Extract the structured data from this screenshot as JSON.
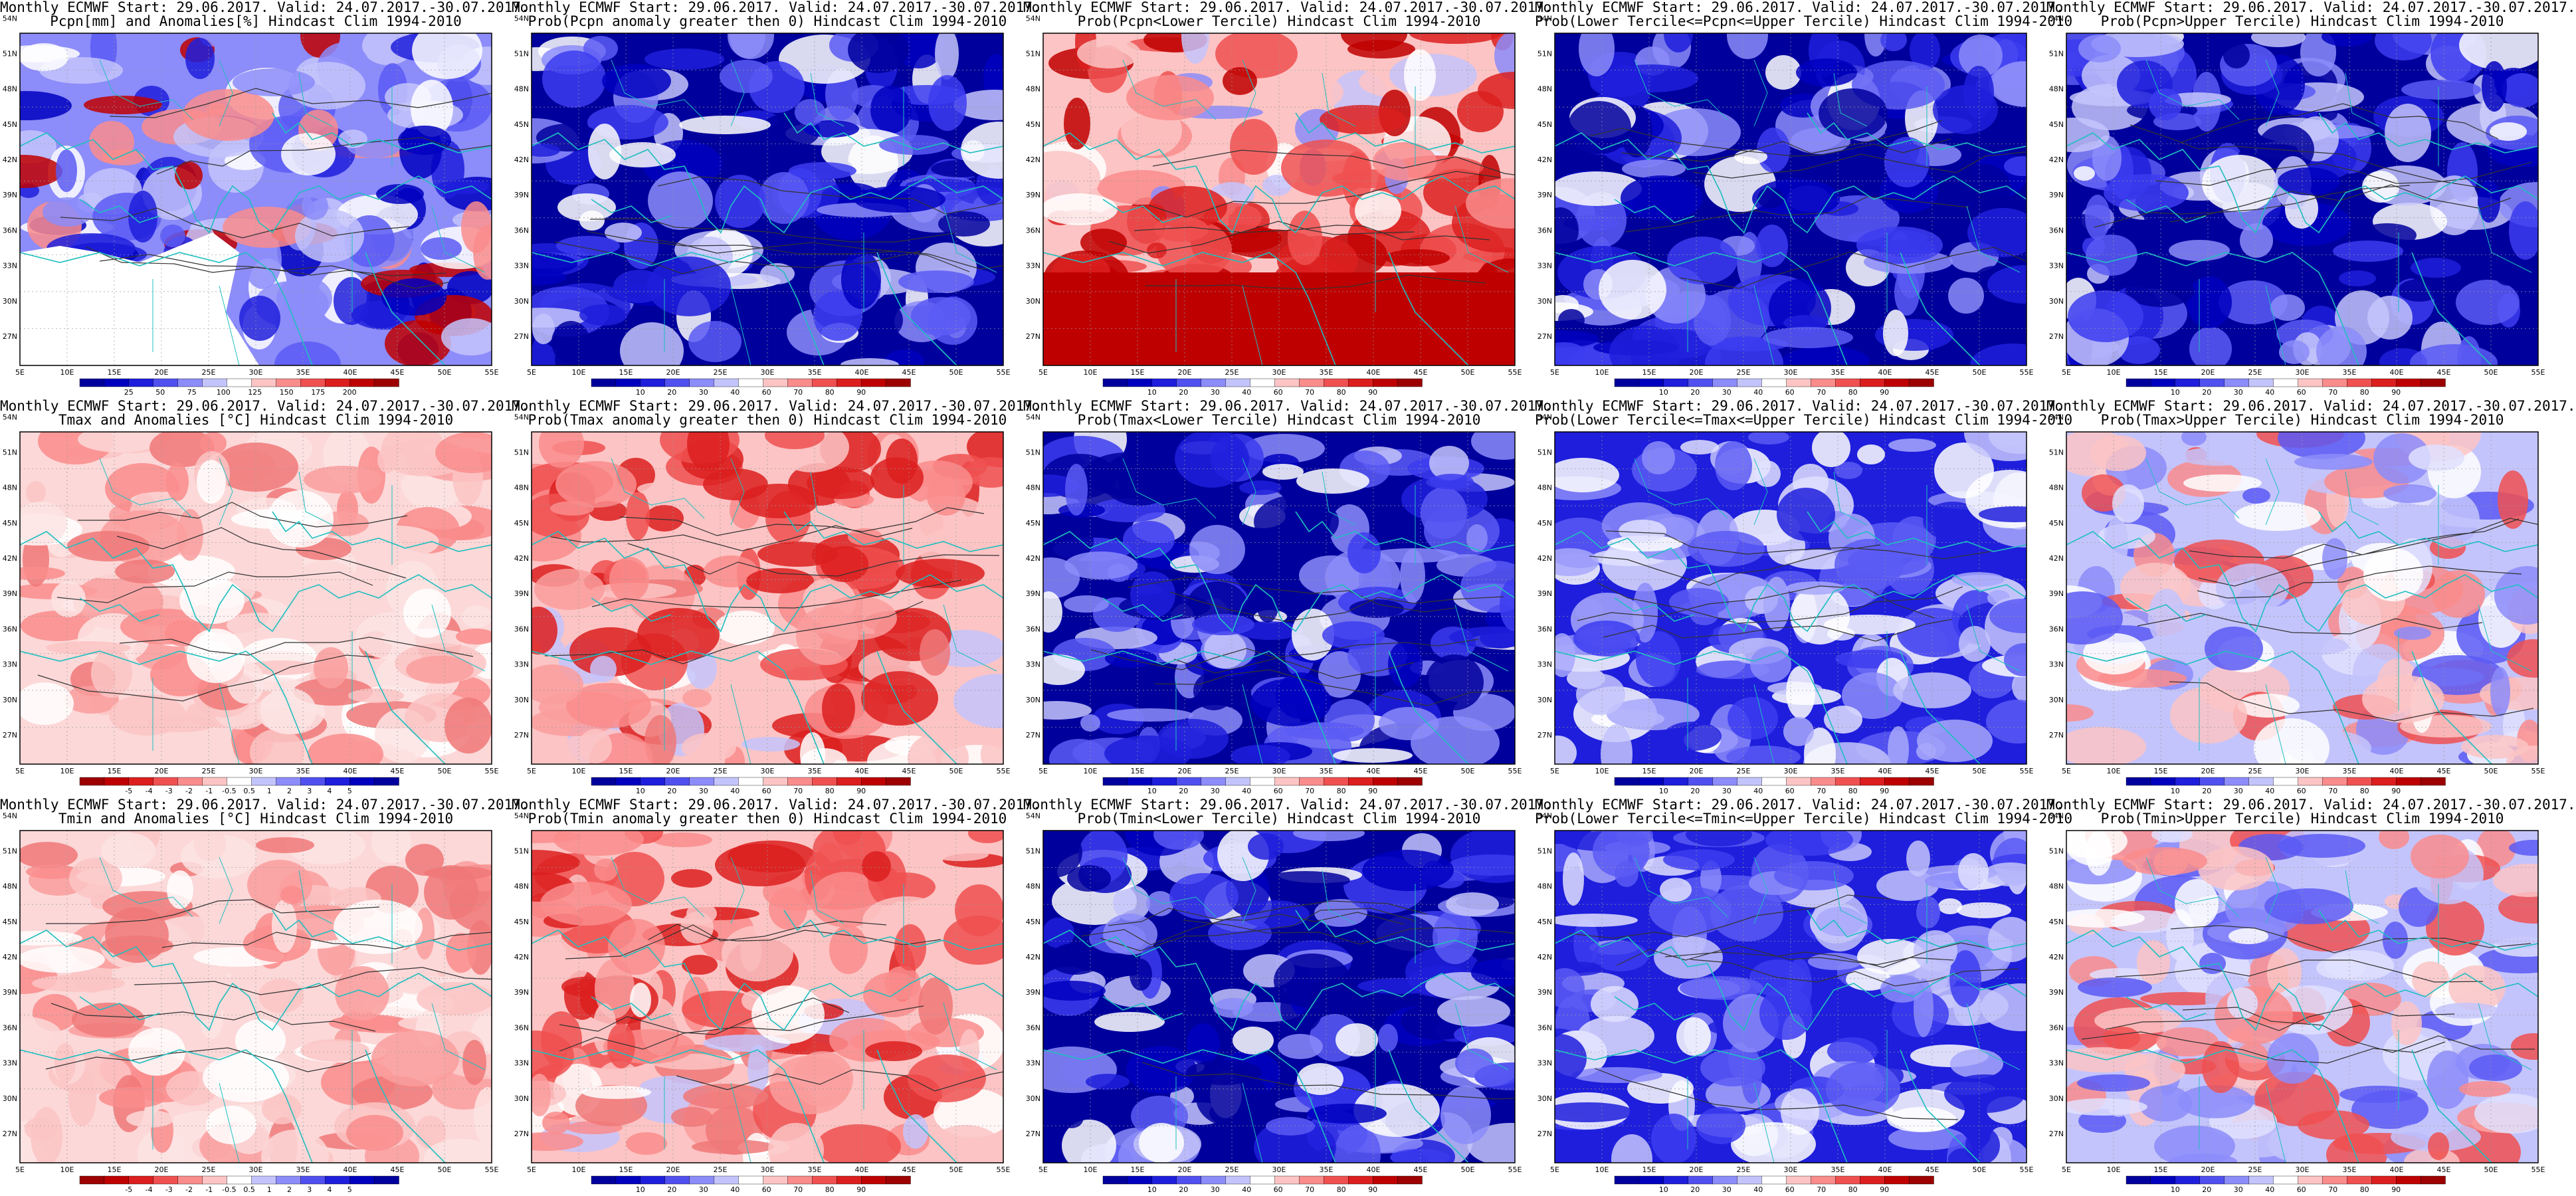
{
  "lon_labels": [
    "5E",
    "10E",
    "15E",
    "20E",
    "25E",
    "30E",
    "35E",
    "40E",
    "45E",
    "50E",
    "55E"
  ],
  "lat_labels": [
    "27N",
    "30N",
    "33N",
    "36N",
    "39N",
    "42N",
    "45N",
    "48N",
    "51N",
    "54N"
  ],
  "colors": {
    "coast": "#1fbfbf",
    "contour": "#333333",
    "scale_rain": [
      "#9c0000",
      "#bf0000",
      "#dc1e1e",
      "#f05050",
      "#fa8c8c",
      "#fcc4c4",
      "#ffffff",
      "#c4c4fc",
      "#8c8cfa",
      "#5050f0",
      "#1e1edc",
      "#0000bf",
      "#00009c"
    ]
  },
  "panels": [
    {
      "line1": "Monthly ECMWF Start: 29.06.2017. Valid: 24.07.2017.-30.07.2017.",
      "line2": "Pcpn[mm] and Anomalies[%] Hindcast Clim 1994-2010",
      "ticks": [
        "25",
        "50",
        "75",
        "100",
        "125",
        "150",
        "175",
        "200"
      ],
      "style": "pcpn_anom",
      "seed": 11
    },
    {
      "line1": "Monthly ECMWF Start: 29.06.2017. Valid: 24.07.2017.-30.07.2017.",
      "line2": "Prob(Pcpn anomaly greater then 0) Hindcast Clim 1994-2010",
      "ticks": [
        "10",
        "20",
        "30",
        "40",
        "60",
        "70",
        "80",
        "90"
      ],
      "style": "blue_heavy",
      "seed": 12
    },
    {
      "line1": "Monthly ECMWF Start: 29.06.2017. Valid: 24.07.2017.-30.07.2017.",
      "line2": "Prob(Pcpn<Lower Tercile) Hindcast Clim 1994-2010",
      "ticks": [
        "10",
        "20",
        "30",
        "40",
        "60",
        "70",
        "80",
        "90"
      ],
      "style": "red_south",
      "seed": 13
    },
    {
      "line1": "Monthly ECMWF Start: 29.06.2017. Valid: 24.07.2017.-30.07.2017.",
      "line2": "Prob(Lower Tercile<=Pcpn<=Upper Tercile) Hindcast Clim 1994-2010",
      "ticks": [
        "10",
        "20",
        "30",
        "40",
        "60",
        "70",
        "80",
        "90"
      ],
      "style": "blue_deep",
      "seed": 14
    },
    {
      "line1": "Monthly ECMWF Start: 29.06.2017. Valid: 24.07.2017.-30.07.2017.",
      "line2": "Prob(Pcpn>Upper Tercile) Hindcast Clim 1994-2010",
      "ticks": [
        "10",
        "20",
        "30",
        "40",
        "60",
        "70",
        "80",
        "90"
      ],
      "style": "blue_heavy",
      "seed": 15
    },
    {
      "line1": "Monthly ECMWF Start: 29.06.2017. Valid: 24.07.2017.-30.07.2017.",
      "line2": "Tmax and Anomalies [°C] Hindcast Clim 1994-2010",
      "ticks": [
        "-5",
        "-4",
        "-3",
        "-2",
        "-1",
        "-0.5",
        "0.5",
        "1",
        "2",
        "3",
        "4",
        "5"
      ],
      "style": "red_light",
      "seed": 21
    },
    {
      "line1": "Monthly ECMWF Start: 29.06.2017. Valid: 24.07.2017.-30.07.2017.",
      "line2": "Prob(Tmax anomaly greater then 0) Hindcast Clim 1994-2010",
      "ticks": [
        "10",
        "20",
        "30",
        "40",
        "60",
        "70",
        "80",
        "90"
      ],
      "style": "red_strong",
      "seed": 22
    },
    {
      "line1": "Monthly ECMWF Start: 29.06.2017. Valid: 24.07.2017.-30.07.2017.",
      "line2": "Prob(Tmax<Lower Tercile) Hindcast Clim 1994-2010",
      "ticks": [
        "10",
        "20",
        "30",
        "40",
        "60",
        "70",
        "80",
        "90"
      ],
      "style": "blue_heavy",
      "seed": 23
    },
    {
      "line1": "Monthly ECMWF Start: 29.06.2017. Valid: 24.07.2017.-30.07.2017.",
      "line2": "Prob(Lower Tercile<=Tmax<=Upper Tercile) Hindcast Clim 1994-2010",
      "ticks": [
        "10",
        "20",
        "30",
        "40",
        "60",
        "70",
        "80",
        "90"
      ],
      "style": "blue_mid",
      "seed": 24
    },
    {
      "line1": "Monthly ECMWF Start: 29.06.2017. Valid: 24.07.2017.-30.07.2017.",
      "line2": "Prob(Tmax>Upper Tercile) Hindcast Clim 1994-2010",
      "ticks": [
        "10",
        "20",
        "30",
        "40",
        "60",
        "70",
        "80",
        "90"
      ],
      "style": "mixed",
      "seed": 25
    },
    {
      "line1": "Monthly ECMWF Start: 29.06.2017. Valid: 24.07.2017.-30.07.2017.",
      "line2": "Tmin and Anomalies [°C] Hindcast Clim 1994-2010",
      "ticks": [
        "-5",
        "-4",
        "-3",
        "-2",
        "-1",
        "-0.5",
        "0.5",
        "1",
        "2",
        "3",
        "4",
        "5"
      ],
      "style": "red_light",
      "seed": 31
    },
    {
      "line1": "Monthly ECMWF Start: 29.06.2017. Valid: 24.07.2017.-30.07.2017.",
      "line2": "Prob(Tmin anomaly greater then 0) Hindcast Clim 1994-2010",
      "ticks": [
        "10",
        "20",
        "30",
        "40",
        "60",
        "70",
        "80",
        "90"
      ],
      "style": "red_strong",
      "seed": 32
    },
    {
      "line1": "Monthly ECMWF Start: 29.06.2017. Valid: 24.07.2017.-30.07.2017.",
      "line2": "Prob(Tmin<Lower Tercile) Hindcast Clim 1994-2010",
      "ticks": [
        "10",
        "20",
        "30",
        "40",
        "60",
        "70",
        "80",
        "90"
      ],
      "style": "blue_heavy",
      "seed": 33
    },
    {
      "line1": "Monthly ECMWF Start: 29.06.2017. Valid: 24.07.2017.-30.07.2017.",
      "line2": "Prob(Lower Tercile<=Tmin<=Upper Tercile) Hindcast Clim 1994-2010",
      "ticks": [
        "10",
        "20",
        "30",
        "40",
        "60",
        "70",
        "80",
        "90"
      ],
      "style": "blue_mid",
      "seed": 34
    },
    {
      "line1": "Monthly ECMWF Start: 29.06.2017. Valid: 24.07.2017.-30.07.2017.",
      "line2": "Prob(Tmin>Upper Tercile) Hindcast Clim 1994-2010",
      "ticks": [
        "10",
        "20",
        "30",
        "40",
        "60",
        "70",
        "80",
        "90"
      ],
      "style": "mixed",
      "seed": 35
    }
  ]
}
